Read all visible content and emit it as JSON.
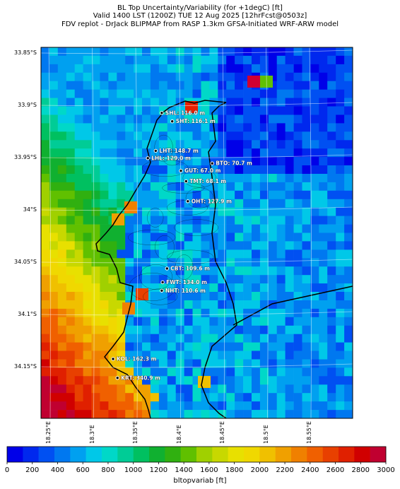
{
  "header": {
    "line1": "BL Top Uncertainty/Variability (for +1degC) [ft]",
    "line2": "Valid 1400 LST (1200Z) TUE 12 Aug 2025 [12hrFcst@0503z]",
    "line3": "FDV replot - DrJack BLIPMAP from RASP 1.3km GFSA-Initiated WRF-ARW model"
  },
  "axes": {
    "lat_ticks": [
      "33.85°S",
      "33.9°S",
      "33.95°S",
      "34°S",
      "34.05°S",
      "34.1°S",
      "34.15°S"
    ],
    "lon_ticks": [
      "18.25°E",
      "18.3°E",
      "18.35°E",
      "18.4°E",
      "18.45°E",
      "18.5°E",
      "18.55°E"
    ]
  },
  "stations": [
    {
      "name": "SHL: 116.0 m",
      "lon": 18.38,
      "lat": -33.907
    },
    {
      "name": "SHT: 116.1 m",
      "lon": 18.392,
      "lat": -33.915
    },
    {
      "name": "LHT: 148.7 m",
      "lon": 18.373,
      "lat": -33.943
    },
    {
      "name": "LHL: 129.0 m",
      "lon": 18.364,
      "lat": -33.95
    },
    {
      "name": "BTO: 70.7 m",
      "lon": 18.438,
      "lat": -33.955
    },
    {
      "name": "GUT: 67.0 m",
      "lon": 18.402,
      "lat": -33.962
    },
    {
      "name": "TMT: 68.1 m",
      "lon": 18.408,
      "lat": -33.972
    },
    {
      "name": "OHT: 127.9 m",
      "lon": 18.41,
      "lat": -33.991
    },
    {
      "name": "CBT: 109.6 m",
      "lon": 18.386,
      "lat": -34.055
    },
    {
      "name": "FWT: 134.0 m",
      "lon": 18.381,
      "lat": -34.068
    },
    {
      "name": "NHT: 110.6 m",
      "lon": 18.38,
      "lat": -34.076
    },
    {
      "name": "KOL: 162.3 m",
      "lon": 18.324,
      "lat": -34.141
    },
    {
      "name": "KRT: 340.9 m",
      "lon": 18.329,
      "lat": -34.159
    }
  ],
  "colorbar": {
    "label": "bltopvariab [ft]",
    "ticks": [
      "0",
      "200",
      "400",
      "600",
      "800",
      "1000",
      "1200",
      "1400",
      "1600",
      "1800",
      "2000",
      "2200",
      "2400",
      "2600",
      "2800",
      "3000"
    ],
    "colors": [
      "#0000e8",
      "#0028ee",
      "#0050f2",
      "#0078f0",
      "#00a0f0",
      "#00c8e8",
      "#00d8c8",
      "#00cc96",
      "#00c060",
      "#10b030",
      "#30b010",
      "#60c000",
      "#a0d000",
      "#c8d800",
      "#e8e000",
      "#f0d800",
      "#f0c000",
      "#f0a000",
      "#f08000",
      "#f06000",
      "#e84000",
      "#e02000",
      "#d00000",
      "#c00030"
    ]
  },
  "map_colors": {
    "land_base": "#0078f0",
    "deep": "#0000e8",
    "coast": "#000000",
    "station_label": "#ffffff"
  }
}
